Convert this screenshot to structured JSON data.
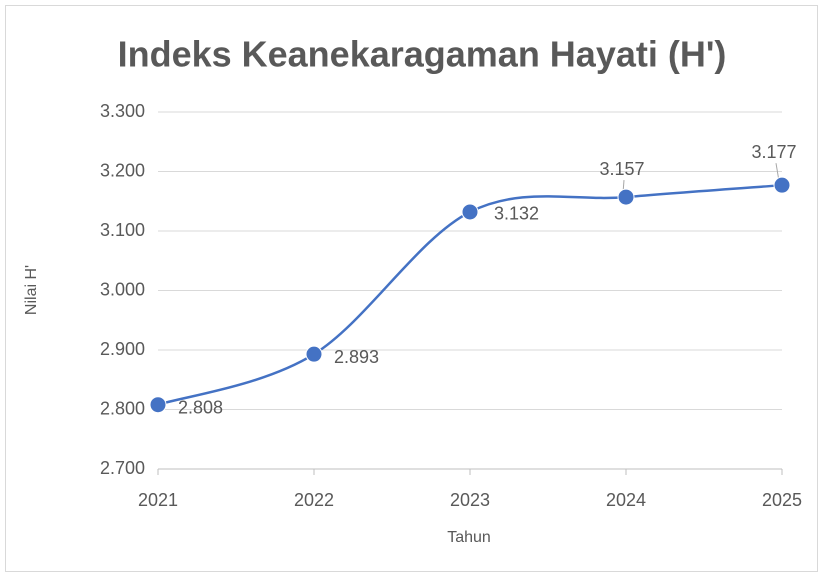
{
  "chart_data": {
    "type": "line",
    "title": "Indeks Keanekaragaman Hayati (H')",
    "x_label": "Tahun",
    "y_label": "Nilai H'",
    "categories": [
      "2021",
      "2022",
      "2023",
      "2024",
      "2025"
    ],
    "values": [
      2.808,
      2.893,
      3.132,
      3.157,
      3.177
    ],
    "color": "#4472c4",
    "smooth": true,
    "data_labels": true,
    "ylim": [
      2.7,
      3.3
    ],
    "yticks": [
      {
        "value": 2.7,
        "label": "2.700"
      },
      {
        "value": 2.8,
        "label": "2.800"
      },
      {
        "value": 2.9,
        "label": "2.900"
      },
      {
        "value": 3.0,
        "label": "3.000"
      },
      {
        "value": 3.1,
        "label": "3.100"
      },
      {
        "value": 3.2,
        "label": "3.200"
      },
      {
        "value": 3.3,
        "label": "3.300"
      }
    ],
    "grid": true
  }
}
